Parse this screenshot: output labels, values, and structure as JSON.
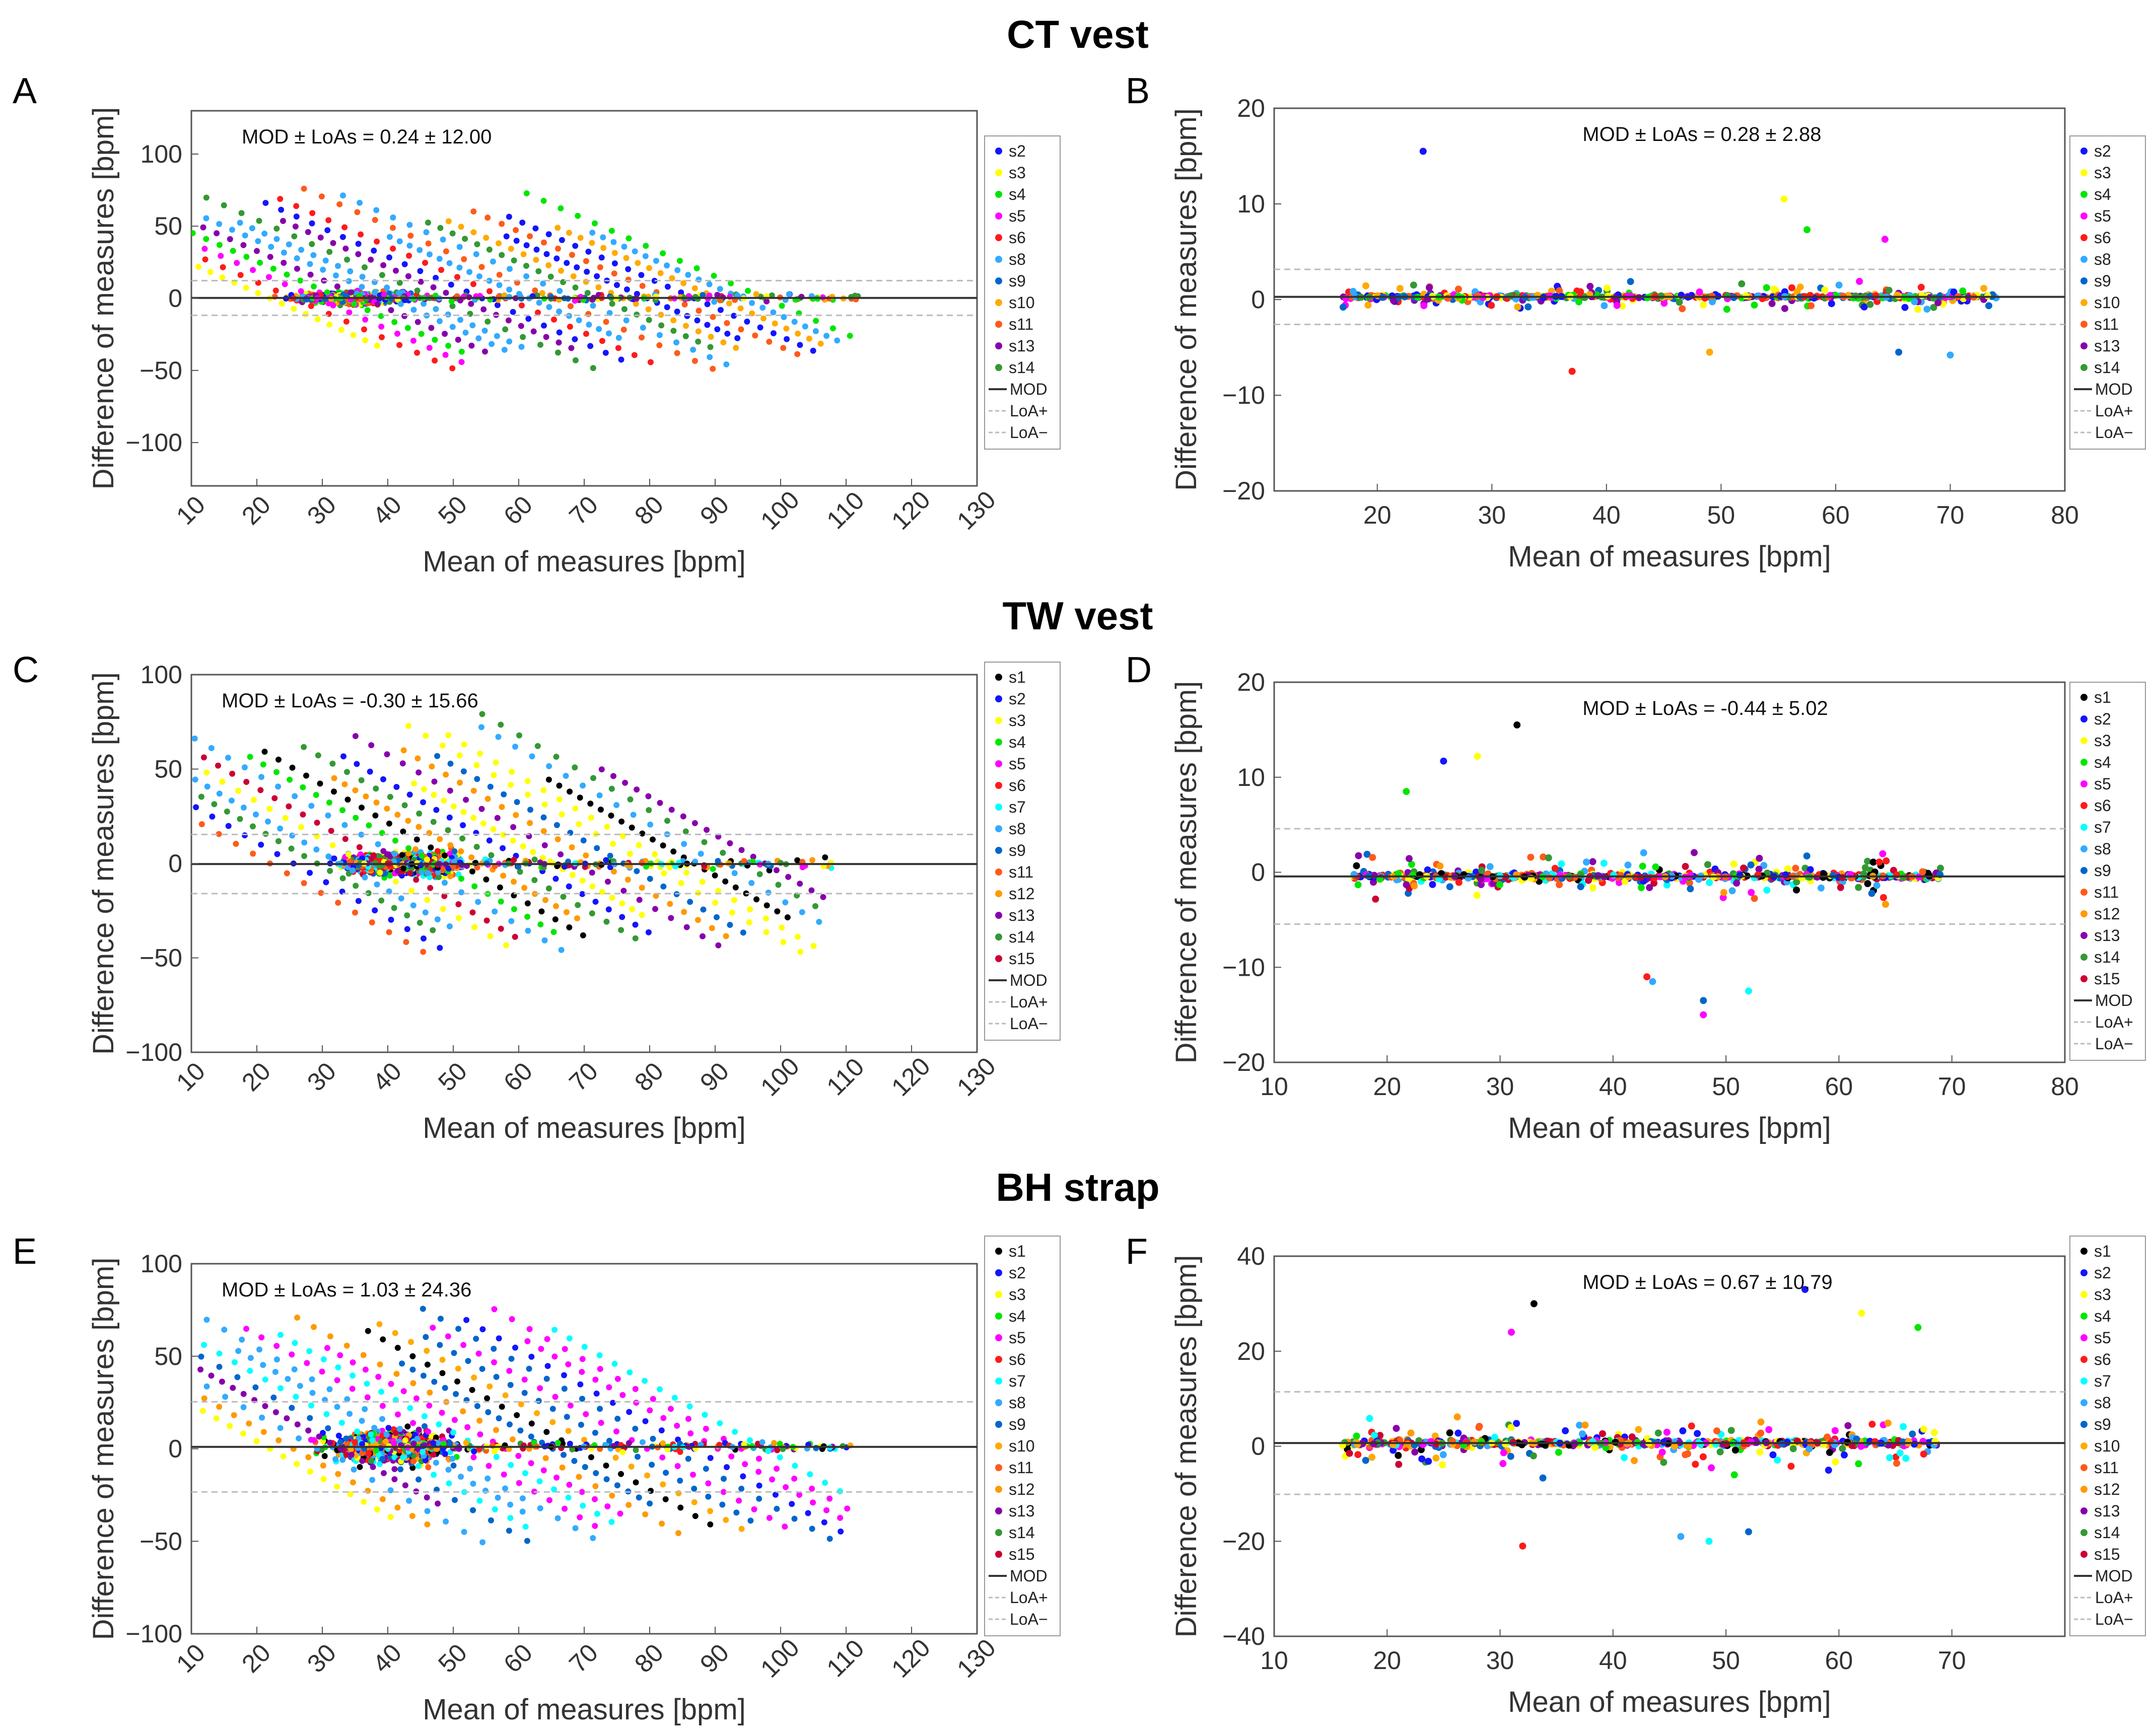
{
  "section_titles": [
    "CT vest",
    "TW vest",
    "BH strap"
  ],
  "chart_data": [
    {
      "panel": "A",
      "type": "scatter",
      "title": "CT vest",
      "xlabel": "Mean of measures [bpm]",
      "ylabel": "Difference of measures [bpm]",
      "xlim": [
        10,
        130
      ],
      "ylim": [
        -130,
        130
      ],
      "xticks": [
        10,
        20,
        30,
        40,
        50,
        60,
        70,
        80,
        90,
        100,
        110,
        120,
        130
      ],
      "yticks": [
        -100,
        -50,
        0,
        50,
        100
      ],
      "annotation": "MOD ± LoAs = 0.24 ± 12.00",
      "mod": 0.24,
      "loa": 12.0,
      "subjects": [
        "s2",
        "s3",
        "s4",
        "s5",
        "s6",
        "s8",
        "s9",
        "s10",
        "s11",
        "s13",
        "s14"
      ],
      "legend_lines": [
        "MOD",
        "LoA+",
        "LoA−"
      ],
      "spread": "wide",
      "xcenter": 35,
      "xmax": 113
    },
    {
      "panel": "B",
      "type": "scatter",
      "title": "CT vest",
      "xlabel": "Mean of measures [bpm]",
      "ylabel": "Difference of measures [bpm]",
      "xlim": [
        11,
        80
      ],
      "ylim": [
        -20,
        20
      ],
      "xticks": [
        20,
        30,
        40,
        50,
        60,
        70,
        80
      ],
      "yticks": [
        -20,
        -10,
        0,
        10,
        20
      ],
      "annotation": "MOD ± LoAs = 0.28 ± 2.88",
      "mod": 0.28,
      "loa": 2.88,
      "subjects": [
        "s2",
        "s3",
        "s4",
        "s5",
        "s6",
        "s8",
        "s9",
        "s10",
        "s11",
        "s13",
        "s14"
      ],
      "legend_lines": [
        "MOD",
        "LoA+",
        "LoA−"
      ],
      "spread": "narrow",
      "xmin_pts": 17,
      "xmax_pts": 74,
      "outliers": [
        [
          24,
          15.5
        ],
        [
          55.5,
          10.5
        ],
        [
          57.5,
          7.3
        ],
        [
          64.3,
          6.3
        ],
        [
          37,
          -7.5
        ],
        [
          70,
          -5.8
        ],
        [
          65.5,
          -5.5
        ],
        [
          49,
          -5.5
        ]
      ]
    },
    {
      "panel": "C",
      "type": "scatter",
      "title": "TW vest",
      "xlabel": "Mean of measures [bpm]",
      "ylabel": "Difference of measures [bpm]",
      "xlim": [
        10,
        130
      ],
      "ylim": [
        -100,
        100
      ],
      "xticks": [
        10,
        20,
        30,
        40,
        50,
        60,
        70,
        80,
        90,
        100,
        110,
        120,
        130
      ],
      "yticks": [
        -100,
        -50,
        0,
        50,
        100
      ],
      "annotation": "MOD ± LoAs = -0.30 ± 15.66",
      "mod": -0.3,
      "loa": 15.66,
      "subjects": [
        "s1",
        "s2",
        "s3",
        "s4",
        "s5",
        "s6",
        "s7",
        "s8",
        "s9",
        "s11",
        "s12",
        "s13",
        "s14",
        "s15"
      ],
      "legend_lines": [
        "MOD",
        "LoA+",
        "LoA−"
      ],
      "spread": "wide",
      "xcenter": 42,
      "xmax": 108
    },
    {
      "panel": "D",
      "type": "scatter",
      "title": "TW vest",
      "xlabel": "Mean of measures [bpm]",
      "ylabel": "Difference of measures [bpm]",
      "xlim": [
        10,
        80
      ],
      "ylim": [
        -20,
        20
      ],
      "xticks": [
        10,
        20,
        30,
        40,
        50,
        60,
        70,
        80
      ],
      "yticks": [
        -20,
        -10,
        0,
        10,
        20
      ],
      "annotation": "MOD ± LoAs = -0.44 ± 5.02",
      "mod": -0.44,
      "loa": 5.02,
      "subjects": [
        "s1",
        "s2",
        "s3",
        "s4",
        "s5",
        "s6",
        "s7",
        "s8",
        "s9",
        "s11",
        "s12",
        "s13",
        "s14",
        "s15"
      ],
      "legend_lines": [
        "MOD",
        "LoA+",
        "LoA−"
      ],
      "spread": "narrow",
      "xmin_pts": 17,
      "xmax_pts": 69,
      "outliers": [
        [
          31.5,
          15.5
        ],
        [
          25,
          11.7
        ],
        [
          28,
          12.2
        ],
        [
          21.7,
          8.5
        ],
        [
          48,
          -15
        ],
        [
          43,
          -11
        ],
        [
          52,
          -12.5
        ],
        [
          43.5,
          -11.5
        ],
        [
          48,
          -13.5
        ]
      ]
    },
    {
      "panel": "E",
      "type": "scatter",
      "title": "BH strap",
      "xlabel": "Mean of measures [bpm]",
      "ylabel": "Difference of measures [bpm]",
      "xlim": [
        10,
        130
      ],
      "ylim": [
        -100,
        100
      ],
      "xticks": [
        10,
        20,
        30,
        40,
        50,
        60,
        70,
        80,
        90,
        100,
        110,
        120,
        130
      ],
      "yticks": [
        -100,
        -50,
        0,
        50,
        100
      ],
      "annotation": "MOD ± LoAs = 1.03 ± 24.36",
      "mod": 1.03,
      "loa": 24.36,
      "subjects": [
        "s1",
        "s2",
        "s3",
        "s4",
        "s5",
        "s6",
        "s7",
        "s8",
        "s9",
        "s10",
        "s11",
        "s12",
        "s13",
        "s14",
        "s15"
      ],
      "legend_lines": [
        "MOD",
        "LoA+",
        "LoA−"
      ],
      "spread": "wide",
      "xcenter": 40,
      "xmax": 111
    },
    {
      "panel": "F",
      "type": "scatter",
      "title": "BH strap",
      "xlabel": "Mean of measures [bpm]",
      "ylabel": "Difference of measures [bpm]",
      "xlim": [
        10,
        80
      ],
      "ylim": [
        -40,
        40
      ],
      "xticks": [
        10,
        20,
        30,
        40,
        50,
        60,
        70
      ],
      "yticks": [
        -40,
        -20,
        0,
        20,
        40
      ],
      "annotation": "MOD ± LoAs = 0.67 ± 10.79",
      "mod": 0.67,
      "loa": 10.79,
      "subjects": [
        "s1",
        "s2",
        "s3",
        "s4",
        "s5",
        "s6",
        "s7",
        "s8",
        "s9",
        "s10",
        "s11",
        "s12",
        "s13",
        "s14",
        "s15"
      ],
      "legend_lines": [
        "MOD",
        "LoA+",
        "LoA−"
      ],
      "spread": "narrow",
      "xmin_pts": 16,
      "xmax_pts": 69,
      "outliers": [
        [
          33,
          30
        ],
        [
          57,
          33
        ],
        [
          62,
          28
        ],
        [
          67,
          25
        ],
        [
          31,
          24
        ],
        [
          32,
          -21
        ],
        [
          48.5,
          -20
        ],
        [
          46,
          -19
        ],
        [
          52,
          -18
        ]
      ]
    }
  ],
  "subject_colors": {
    "s1": "#000000",
    "s2": "#1414ff",
    "s3": "#ffff00",
    "s4": "#00e600",
    "s5": "#ff00ff",
    "s6": "#ff1a1a",
    "s7": "#00ffff",
    "s8": "#33aaff",
    "s9": "#0066cc",
    "s10": "#ffaa00",
    "s11": "#ff5a1a",
    "s12": "#ff9900",
    "s13": "#8800aa",
    "s14": "#339933",
    "s15": "#cc0033"
  },
  "line_colors": {
    "mod": "#333333",
    "loa": "#bbbbbb"
  }
}
